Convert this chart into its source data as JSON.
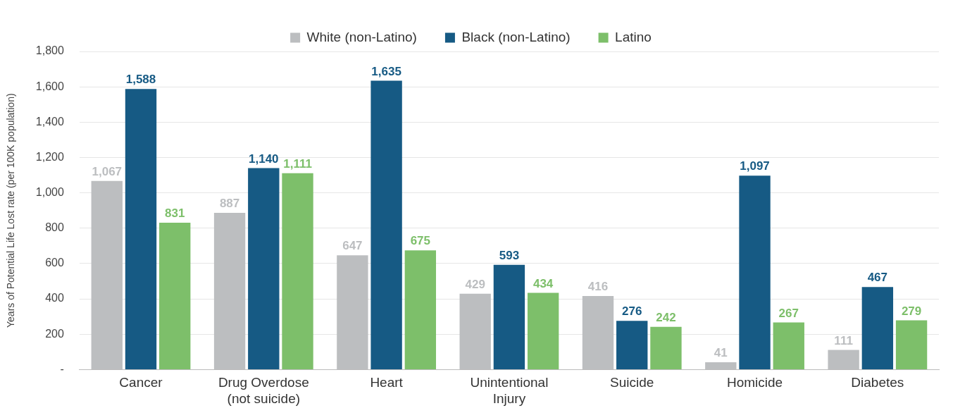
{
  "chart_data": {
    "type": "bar",
    "ylabel": "Years of Potential Life Lost rate (per 100K population)",
    "categories": [
      "Cancer",
      "Drug Overdose (not suicide)",
      "Heart",
      "Unintentional Injury",
      "Suicide",
      "Homicide",
      "Diabetes"
    ],
    "series": [
      {
        "name": "White (non-Latino)",
        "color": "#bcbec0",
        "values": [
          1067,
          887,
          647,
          429,
          416,
          41,
          111
        ],
        "value_labels": [
          "1,067",
          "887",
          "647",
          "429",
          "416",
          "41",
          "111"
        ]
      },
      {
        "name": "Black (non-Latino)",
        "color": "#165a84",
        "values": [
          1588,
          1140,
          1635,
          593,
          276,
          1097,
          467
        ],
        "value_labels": [
          "1,588",
          "1,140",
          "1,635",
          "593",
          "276",
          "1,097",
          "467"
        ]
      },
      {
        "name": "Latino",
        "color": "#7dbf6a",
        "values": [
          831,
          1111,
          675,
          434,
          242,
          267,
          279
        ],
        "value_labels": [
          "831",
          "1,111",
          "675",
          "434",
          "242",
          "267",
          "279"
        ]
      }
    ],
    "ylim": [
      0,
      1800
    ],
    "yticks": [
      {
        "value": 0,
        "label": "-"
      },
      200,
      400,
      600,
      800,
      {
        "value": 1000,
        "label": "1,000"
      },
      {
        "value": 1200,
        "label": "1,200"
      },
      {
        "value": 1400,
        "label": "1,400"
      },
      {
        "value": 1600,
        "label": "1,600"
      },
      {
        "value": 1800,
        "label": "1,800"
      }
    ],
    "grid": "y",
    "legend": "top"
  }
}
